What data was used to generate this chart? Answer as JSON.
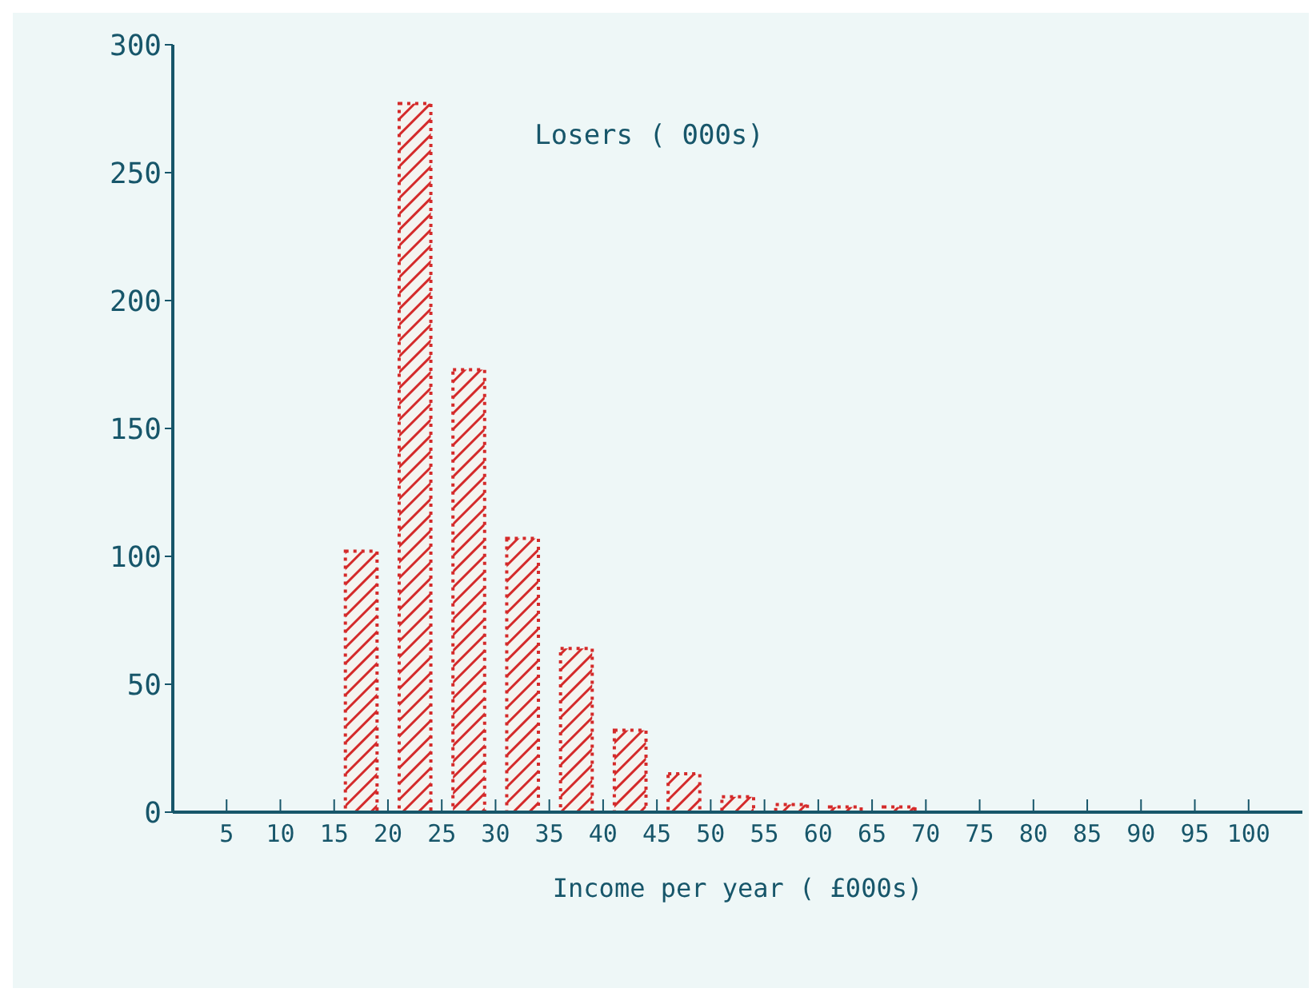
{
  "chart_data": {
    "type": "bar",
    "title": "Losers ( 000s)",
    "xlabel": "Income per year ( £000s)",
    "x": [
      17.5,
      22.5,
      27.5,
      32.5,
      37.5,
      42.5,
      47.5,
      52.5,
      57.5,
      62.5,
      67.5
    ],
    "values": [
      102,
      277,
      173,
      107,
      64,
      32,
      15,
      6,
      3,
      2,
      2
    ],
    "color": "#d42a2a",
    "xlim": [
      0,
      105
    ],
    "xticks": [
      5,
      10,
      15,
      20,
      25,
      30,
      35,
      40,
      45,
      50,
      55,
      60,
      65,
      70,
      75,
      80,
      85,
      90,
      95,
      100
    ],
    "ylim": [
      0,
      300
    ],
    "yticks": [
      0,
      50,
      100,
      150,
      200,
      250,
      300
    ]
  }
}
